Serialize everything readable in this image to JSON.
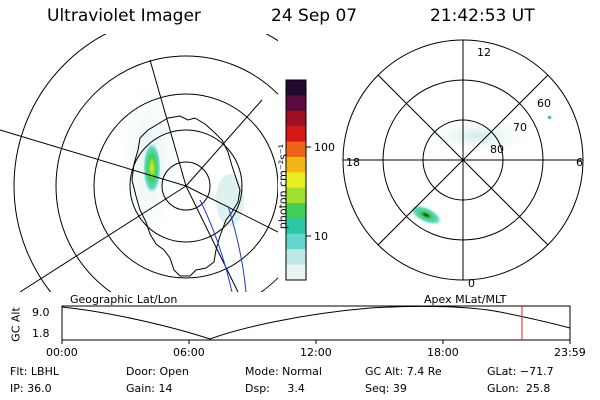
{
  "header": {
    "title": "Ultraviolet Imager",
    "date": "24 Sep 07",
    "time": "21:42:53 UT"
  },
  "left_map": {
    "caption": "Geographic Lat/Lon"
  },
  "right_map": {
    "caption": "Apex MLat/MLT",
    "mlt_labels": {
      "top": "12",
      "left": "18",
      "right": "6",
      "bottom": "0"
    },
    "mlat_labels": [
      "60",
      "70",
      "80"
    ]
  },
  "colorbar": {
    "unit_label": "photon cm⁻²s⁻¹",
    "ticks": [
      "100",
      "10"
    ],
    "colors": [
      "#e8f4f4",
      "#bfe8e8",
      "#66d6d0",
      "#2fc6a8",
      "#3fcf5a",
      "#9fe030",
      "#e8ee20",
      "#f6b516",
      "#ef6418",
      "#d81818",
      "#a01024",
      "#5a0c40",
      "#200a30"
    ]
  },
  "altitude_plot": {
    "ylabel": "GC Alt",
    "y_ticks": [
      "9.0",
      "1.8"
    ],
    "x_ticks": [
      "00:00",
      "06:00",
      "12:00",
      "18:00",
      "23:59"
    ],
    "marker_color": "#e02020"
  },
  "info": {
    "row1": {
      "flt": "Flt: LBHL",
      "door": "Door: Open",
      "mode": "Mode: Normal",
      "gc_alt": "GC Alt: 7.4 Re",
      "glat": "GLat: −71.7"
    },
    "row2": {
      "ip": "IP: 36.0",
      "gain": "Gain: 14",
      "dsp": "Dsp:     3.4",
      "seq": "Seq: 39",
      "glon": "GLon:  25.8"
    }
  }
}
